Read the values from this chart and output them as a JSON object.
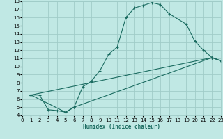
{
  "xlabel": "Humidex (Indice chaleur)",
  "xlim": [
    0,
    23
  ],
  "ylim": [
    4,
    18
  ],
  "xticks": [
    0,
    1,
    2,
    3,
    4,
    5,
    6,
    7,
    8,
    9,
    10,
    11,
    12,
    13,
    14,
    15,
    16,
    17,
    18,
    19,
    20,
    21,
    22,
    23
  ],
  "yticks": [
    4,
    5,
    6,
    7,
    8,
    9,
    10,
    11,
    12,
    13,
    14,
    15,
    16,
    17,
    18
  ],
  "bg_color": "#c0e8e4",
  "grid_color": "#a0ccc8",
  "line_color": "#1a6b60",
  "curve1_x": [
    1,
    2,
    3,
    4,
    5,
    6,
    7,
    8,
    9,
    10,
    11,
    12,
    13,
    14,
    15,
    16,
    17,
    19,
    20,
    21,
    22,
    23
  ],
  "curve1_y": [
    6.5,
    6.5,
    4.7,
    4.6,
    4.4,
    5.0,
    7.5,
    8.2,
    9.5,
    11.5,
    12.4,
    16.0,
    17.2,
    17.5,
    17.85,
    17.6,
    16.5,
    15.2,
    13.1,
    12.0,
    11.1,
    10.7
  ],
  "curve2_x": [
    1,
    22,
    23
  ],
  "curve2_y": [
    6.5,
    11.1,
    10.7
  ],
  "curve3_x": [
    1,
    5,
    6,
    22,
    23
  ],
  "curve3_y": [
    6.5,
    4.4,
    5.0,
    11.1,
    10.7
  ]
}
